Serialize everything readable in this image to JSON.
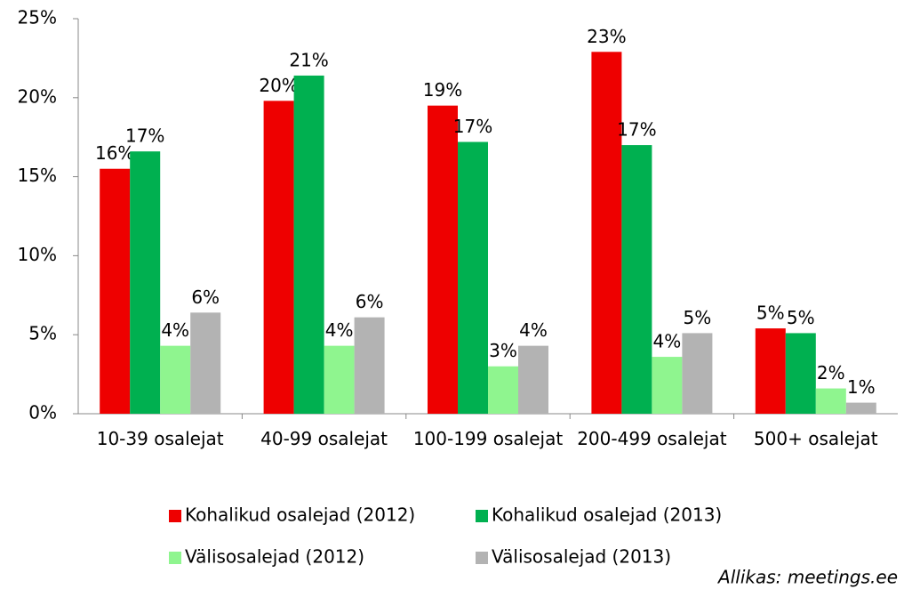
{
  "chart_data": {
    "type": "bar",
    "categories": [
      "10-39 osalejat",
      "40-99 osalejat",
      "100-199 osalejat",
      "200-499 osalejat",
      "500+ osalejat"
    ],
    "series": [
      {
        "name": "Kohalikud osalejad (2012)",
        "color": "#ee0000",
        "values": [
          15.5,
          19.8,
          19.5,
          22.9,
          5.4
        ],
        "value_labels": [
          "16%",
          "20%",
          "19%",
          "23%",
          "5%"
        ]
      },
      {
        "name": "Kohalikud osalejad (2013)",
        "color": "#00b050",
        "values": [
          16.6,
          21.4,
          17.2,
          17.0,
          5.1
        ],
        "value_labels": [
          "17%",
          "21%",
          "17%",
          "17%",
          "5%"
        ]
      },
      {
        "name": "Välisosalejad (2012)",
        "color": "#8ff58f",
        "values": [
          4.3,
          4.3,
          3.0,
          3.6,
          1.6
        ],
        "value_labels": [
          "4%",
          "4%",
          "3%",
          "4%",
          "2%"
        ]
      },
      {
        "name": "Välisosalejad (2013)",
        "color": "#b3b3b3",
        "values": [
          6.4,
          6.1,
          4.3,
          5.1,
          0.7
        ],
        "value_labels": [
          "6%",
          "6%",
          "4%",
          "5%",
          "1%"
        ]
      }
    ],
    "ylim": [
      0,
      25
    ],
    "yticks": [
      {
        "value": 0,
        "label": "0%"
      },
      {
        "value": 5,
        "label": "5%"
      },
      {
        "value": 10,
        "label": "10%"
      },
      {
        "value": 15,
        "label": "15%"
      },
      {
        "value": 20,
        "label": "20%"
      },
      {
        "value": 25,
        "label": "25%"
      }
    ],
    "grid": false,
    "legend": "bottom",
    "source": "Allikas: meetings.ee"
  }
}
